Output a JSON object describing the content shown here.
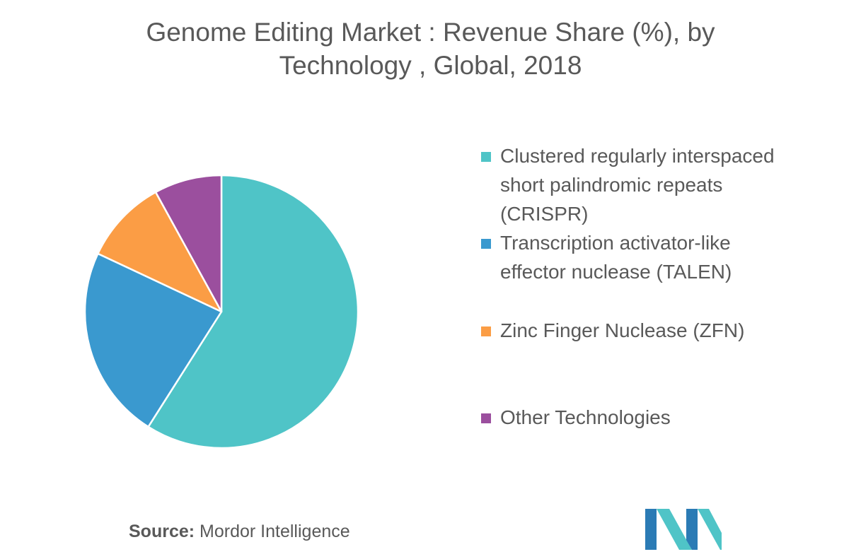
{
  "chart_data": {
    "type": "pie",
    "title_lines": [
      "Genome Editing Market : Revenue Share (%), by",
      "Technology , Global, 2018"
    ],
    "slices": [
      {
        "name": "Clustered regularly interspaced short palindromic repeats (CRISPR)",
        "label_lines": [
          "Clustered regularly interspaced",
          "short palindromic repeats",
          "(CRISPR)"
        ],
        "value": 59,
        "color": "#4fc4c7"
      },
      {
        "name": "Transcription activator-like effector nuclease (TALEN)",
        "label_lines": [
          "Transcription activator-like",
          "effector nuclease (TALEN)"
        ],
        "value": 23,
        "color": "#3a99cf"
      },
      {
        "name": "Zinc Finger Nuclease (ZFN)",
        "label_lines": [
          "Zinc Finger Nuclease (ZFN)"
        ],
        "value": 10,
        "color": "#fb9d45"
      },
      {
        "name": "Other Technologies",
        "label_lines": [
          "Other Technologies"
        ],
        "value": 8,
        "color": "#9b4f9e"
      }
    ],
    "legend_position": "right"
  },
  "source": {
    "label": "Source:",
    "text": "Mordor Intelligence"
  },
  "logo": {
    "icon": "mordor-intelligence-logo",
    "colors": [
      "#2b7bb5",
      "#4fc4c7"
    ]
  }
}
